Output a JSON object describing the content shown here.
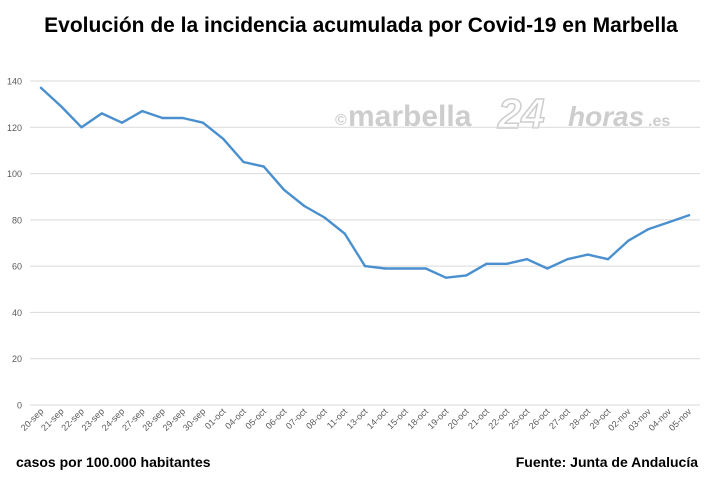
{
  "title": "Evolución de la incidencia acumulada por Covid-19 en Marbella",
  "footer": {
    "left": "casos por 100.000 habitantes",
    "right": "Fuente: Junta de Andalucía"
  },
  "watermark": {
    "copyright": "©",
    "brand": "marbella",
    "number": "24",
    "suffix": "horas",
    "tld": ".es"
  },
  "colors": {
    "line": "#4a90cf",
    "grid": "#d9d9d9",
    "tick_text": "#595959",
    "watermark": "#c8c8c8"
  },
  "chart_data": {
    "type": "line",
    "ylim": [
      0,
      140
    ],
    "yticks": [
      0,
      20,
      40,
      60,
      80,
      100,
      120,
      140
    ],
    "grid": true,
    "categories": [
      "20-sep",
      "21-sep",
      "22-sep",
      "23-sep",
      "24-sep",
      "27-sep",
      "28-sep",
      "29-sep",
      "30-sep",
      "01-oct",
      "04-oct",
      "05-oct",
      "06-oct",
      "07-oct",
      "08-oct",
      "11-oct",
      "13-oct",
      "14-oct",
      "15-oct",
      "18-oct",
      "19-oct",
      "20-oct",
      "21-oct",
      "22-oct",
      "25-oct",
      "26-oct",
      "27-oct",
      "28-oct",
      "29-oct",
      "02-nov",
      "03-nov",
      "04-nov",
      "05-nov"
    ],
    "series": [
      {
        "values": [
          137,
          129,
          120,
          126,
          122,
          127,
          124,
          124,
          122,
          115,
          105,
          103,
          93,
          86,
          81,
          74,
          60,
          59,
          59,
          59,
          55,
          56,
          61,
          61,
          63,
          59,
          63,
          65,
          63,
          71,
          76,
          79,
          82
        ]
      }
    ]
  }
}
